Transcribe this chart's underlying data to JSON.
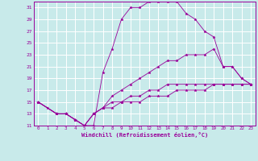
{
  "bg_color": "#c8eaea",
  "grid_color": "#ffffff",
  "line_color": "#990099",
  "marker_color": "#990099",
  "xlabel": "Windchill (Refroidissement éolien,°C)",
  "xlim": [
    -0.5,
    23.5
  ],
  "ylim": [
    11,
    32
  ],
  "yticks": [
    11,
    13,
    15,
    17,
    19,
    21,
    23,
    25,
    27,
    29,
    31
  ],
  "xticks": [
    0,
    1,
    2,
    3,
    4,
    5,
    6,
    7,
    8,
    9,
    10,
    11,
    12,
    13,
    14,
    15,
    16,
    17,
    18,
    19,
    20,
    21,
    22,
    23
  ],
  "series": [
    {
      "x": [
        0,
        1,
        2,
        3,
        4,
        5,
        6,
        7,
        8,
        9,
        10,
        11,
        12,
        13,
        14,
        15,
        16,
        17,
        18,
        19,
        20,
        21,
        22,
        23
      ],
      "y": [
        15,
        14,
        13,
        13,
        12,
        11,
        11,
        20,
        24,
        29,
        31,
        31,
        32,
        32,
        32,
        32,
        30,
        29,
        27,
        26,
        21,
        21,
        19,
        18
      ]
    },
    {
      "x": [
        0,
        2,
        3,
        4,
        5,
        6,
        7,
        8,
        9,
        10,
        11,
        12,
        13,
        14,
        15,
        16,
        17,
        18,
        19,
        20,
        21,
        22,
        23
      ],
      "y": [
        15,
        13,
        13,
        12,
        11,
        13,
        14,
        16,
        17,
        18,
        19,
        20,
        21,
        22,
        22,
        23,
        23,
        23,
        24,
        21,
        21,
        19,
        18
      ]
    },
    {
      "x": [
        0,
        2,
        3,
        4,
        5,
        6,
        7,
        8,
        9,
        10,
        11,
        12,
        13,
        14,
        15,
        16,
        17,
        18,
        19,
        20,
        21,
        22,
        23
      ],
      "y": [
        15,
        13,
        13,
        12,
        11,
        13,
        14,
        15,
        15,
        16,
        16,
        17,
        17,
        18,
        18,
        18,
        18,
        18,
        18,
        18,
        18,
        18,
        18
      ]
    },
    {
      "x": [
        0,
        2,
        3,
        4,
        5,
        6,
        7,
        8,
        9,
        10,
        11,
        12,
        13,
        14,
        15,
        16,
        17,
        18,
        19,
        20,
        21,
        22,
        23
      ],
      "y": [
        15,
        13,
        13,
        12,
        11,
        13,
        14,
        14,
        15,
        15,
        15,
        16,
        16,
        16,
        17,
        17,
        17,
        17,
        18,
        18,
        18,
        18,
        18
      ]
    }
  ]
}
